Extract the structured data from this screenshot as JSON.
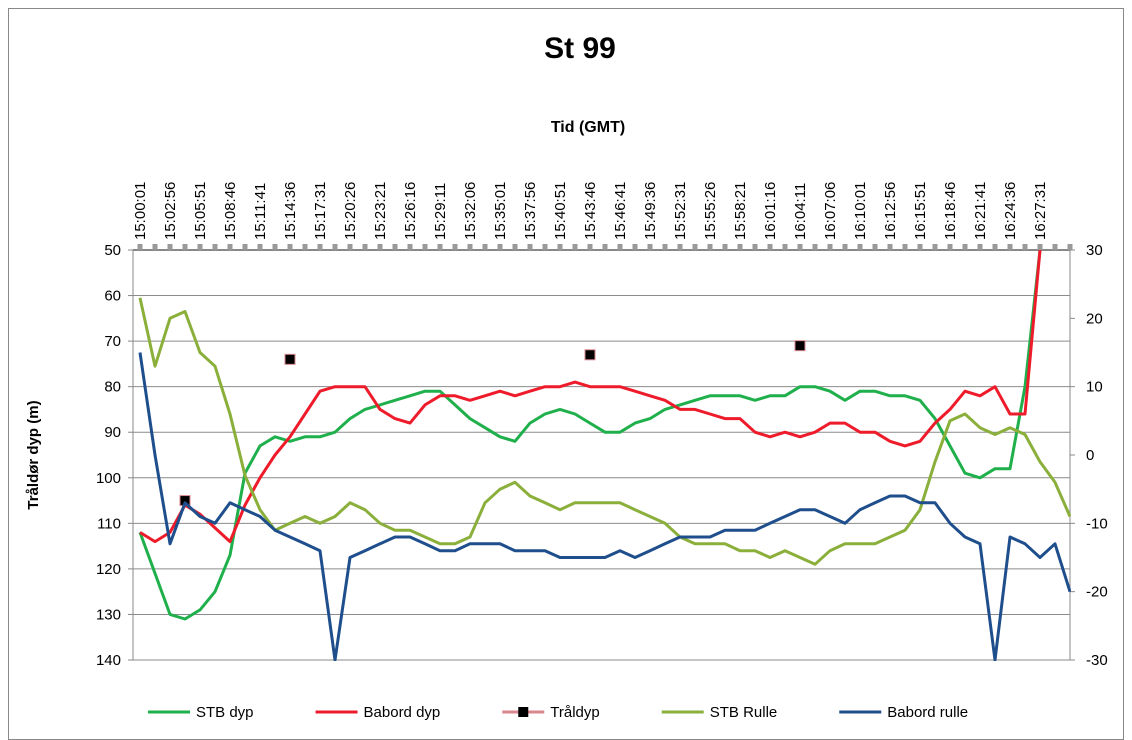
{
  "chart_data": {
    "type": "line",
    "title": "St 99",
    "x_label": "Tid (GMT)",
    "y_label": "Tråldør dyp (m)",
    "categories": [
      "15:00:01",
      null,
      "15:02:56",
      null,
      "15:05:51",
      null,
      "15:08:46",
      null,
      "15:11:41",
      null,
      "15:14:36",
      null,
      "15:17:31",
      null,
      "15:20:26",
      null,
      "15:23:21",
      null,
      "15:26:16",
      null,
      "15:29:11",
      null,
      "15:32:06",
      null,
      "15:35:01",
      null,
      "15:37:56",
      null,
      "15:40:51",
      null,
      "15:43:46",
      null,
      "15:46:41",
      null,
      "15:49:36",
      null,
      "15:52:31",
      null,
      "15:55:26",
      null,
      "15:58:21",
      null,
      "16:01:16",
      null,
      "16:04:11",
      null,
      "16:07:06",
      null,
      "16:10:01",
      null,
      "16:12:56",
      null,
      "16:15:51",
      null,
      "16:18:46",
      null,
      "16:21:41",
      null,
      "16:24:36",
      null,
      "16:27:31",
      null,
      null
    ],
    "ylim": [
      50,
      140
    ],
    "y_inverted": true,
    "yticks": [
      50,
      60,
      70,
      80,
      90,
      100,
      110,
      120,
      130,
      140
    ],
    "y2lim": [
      -30,
      30
    ],
    "y2ticks": [
      -30,
      -20,
      -10,
      0,
      10,
      20,
      30
    ],
    "grid": true,
    "x_axis_position": "top",
    "legend": "bottom",
    "series": [
      {
        "name": "STB dyp",
        "color": "#1fb04c",
        "values": [
          112,
          121,
          130,
          131,
          129,
          125,
          117,
          99,
          93,
          91,
          92,
          91,
          91,
          90,
          87,
          85,
          84,
          83,
          82,
          81,
          81,
          84,
          87,
          89,
          91,
          92,
          88,
          86,
          85,
          86,
          88,
          90,
          90,
          88,
          87,
          85,
          84,
          83,
          82,
          82,
          82,
          83,
          82,
          82,
          80,
          80,
          81,
          83,
          81,
          81,
          82,
          82,
          83,
          87,
          93,
          99,
          100,
          98,
          98,
          80,
          50,
          null,
          null
        ]
      },
      {
        "name": "Babord dyp",
        "color": "#ee1c2b",
        "values": [
          112,
          114,
          112,
          106,
          108,
          111,
          114,
          106,
          100,
          95,
          91,
          86,
          81,
          80,
          80,
          80,
          85,
          87,
          88,
          84,
          82,
          82,
          83,
          82,
          81,
          82,
          81,
          80,
          80,
          79,
          80,
          80,
          80,
          81,
          82,
          83,
          85,
          85,
          86,
          87,
          87,
          90,
          91,
          90,
          91,
          90,
          88,
          88,
          90,
          90,
          92,
          93,
          92,
          88,
          85,
          81,
          82,
          80,
          86,
          86,
          50,
          null,
          null
        ]
      },
      {
        "name": "Tråldyp",
        "color": "#d9868e",
        "marker_color": "#000000",
        "markers_only": true,
        "values": [
          null,
          null,
          null,
          105,
          null,
          null,
          null,
          null,
          null,
          null,
          74,
          null,
          null,
          null,
          null,
          null,
          null,
          null,
          null,
          null,
          null,
          null,
          null,
          null,
          null,
          null,
          null,
          null,
          null,
          null,
          73,
          null,
          null,
          null,
          null,
          null,
          null,
          null,
          null,
          null,
          null,
          null,
          null,
          null,
          71,
          null,
          null,
          null,
          null,
          null,
          null,
          null,
          null,
          null,
          null,
          null,
          null,
          null,
          null,
          null,
          null,
          null,
          null
        ]
      },
      {
        "name": "STB Rulle",
        "color": "#8aaf3a",
        "axis": "y2",
        "values": [
          23,
          13,
          20,
          21,
          15,
          13,
          6,
          -3,
          -8,
          -11,
          -10,
          -9,
          -10,
          -9,
          -7,
          -8,
          -10,
          -11,
          -11,
          -12,
          -13,
          -13,
          -12,
          -7,
          -5,
          -4,
          -6,
          -7,
          -8,
          -7,
          -7,
          -7,
          -7,
          -8,
          -9,
          -10,
          -12,
          -13,
          -13,
          -13,
          -14,
          -14,
          -15,
          -14,
          -15,
          -16,
          -14,
          -13,
          -13,
          -13,
          -12,
          -11,
          -8,
          -1,
          5,
          6,
          4,
          3,
          4,
          3,
          -1,
          -4,
          -9
        ]
      },
      {
        "name": "Babord rulle",
        "color": "#1f4e8c",
        "axis": "y2",
        "values": [
          15,
          0,
          -13,
          -7,
          -9,
          -10,
          -7,
          -8,
          -9,
          -11,
          -12,
          -13,
          -14,
          -30,
          -15,
          -14,
          -13,
          -12,
          -12,
          -13,
          -14,
          -14,
          -13,
          -13,
          -13,
          -14,
          -14,
          -14,
          -15,
          -15,
          -15,
          -15,
          -14,
          -15,
          -14,
          -13,
          -12,
          -12,
          -12,
          -11,
          -11,
          -11,
          -10,
          -9,
          -8,
          -8,
          -9,
          -10,
          -8,
          -7,
          -6,
          -6,
          -7,
          -7,
          -10,
          -12,
          -13,
          -30,
          -12,
          -13,
          -15,
          -13,
          -20
        ]
      }
    ]
  }
}
